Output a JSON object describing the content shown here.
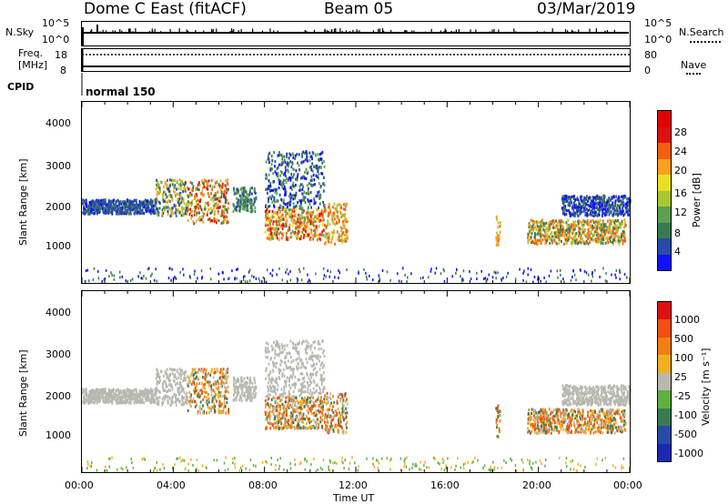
{
  "header": {
    "radar": "Dome C East (fitACF)",
    "beam": "Beam 05",
    "date": "03/Mar/2019"
  },
  "status_panels": {
    "nsky_label": "N.Sky",
    "nsearch_label": "N.Search",
    "freq_label_1": "Freq.",
    "freq_label_2": "[MHz]",
    "nave_label": "Nave",
    "cpid_label": "CPID",
    "cpid_value": "normal 150",
    "nsky_ticks": [
      "10^5",
      "10^0"
    ],
    "nsearch_ticks": [
      "10^5",
      "10^0"
    ],
    "freq_ticks": [
      "18",
      "8"
    ],
    "nave_ticks": [
      "80",
      "0"
    ]
  },
  "chart_data": [
    {
      "type": "heatmap",
      "name": "power",
      "ylabel": "Slant Range [km]",
      "yticks": [
        "4000",
        "3000",
        "2000",
        "1000"
      ],
      "ylim": [
        0,
        4500
      ],
      "xlim": [
        0,
        24
      ],
      "colorbar_label": "Power [dB]",
      "colorbar_ticks": [
        "28",
        "24",
        "20",
        "16",
        "12",
        "8",
        "4"
      ],
      "colors": [
        "#1010ff",
        "#2a4aa8",
        "#3a7a50",
        "#5aa050",
        "#a8c830",
        "#e8e020",
        "#f8a020",
        "#f06010",
        "#e01010",
        "#e00000"
      ]
    },
    {
      "type": "heatmap",
      "name": "velocity",
      "ylabel": "Slant Range [km]",
      "yticks": [
        "4000",
        "3000",
        "2000",
        "1000"
      ],
      "ylim": [
        0,
        4500
      ],
      "xlim": [
        0,
        24
      ],
      "colorbar_label": "Velocity [m s⁻¹]",
      "colorbar_ticks": [
        "1000",
        "500",
        "100",
        "25",
        "-25",
        "-100",
        "-500",
        "-1000"
      ],
      "colors": [
        "#1a2ab0",
        "#2a4aa8",
        "#3a7a50",
        "#60b040",
        "#b8b8b0",
        "#f0b020",
        "#f08010",
        "#f05010",
        "#e01010"
      ]
    }
  ],
  "xaxis": {
    "label": "Time UT",
    "ticks": [
      "00:00",
      "04:00",
      "08:00",
      "12:00",
      "16:00",
      "20:00",
      "00:00"
    ]
  }
}
